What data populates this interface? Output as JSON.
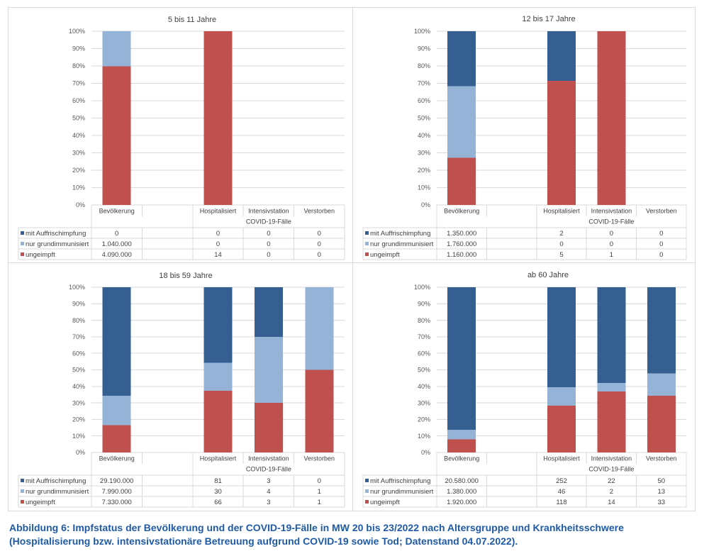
{
  "figure": {
    "caption_line1": "Abbildung 6: Impfstatus der Bevölkerung und der COVID-19-Fälle in MW 20 bis 23/2022 nach Altersgruppe und Krankheitsschwere",
    "caption_line2": "(Hospitalisierung bzw. intensivstationäre Betreuung aufgrund COVID-19 sowie Tod; Datenstand 04.07.2022)."
  },
  "colors": {
    "mit_auffrischimpfung": "#355F91",
    "nur_grundimmunisiert": "#95B3D7",
    "ungeimpft": "#C0504D",
    "caption": "#1F5AA6"
  },
  "chart_data": [
    {
      "type": "bar",
      "stacking": "percent",
      "title": "5 bis 11 Jahre",
      "xlabel": "",
      "ylabel": "",
      "ylim": [
        0,
        100
      ],
      "ytick_values": [
        0,
        10,
        20,
        30,
        40,
        50,
        60,
        70,
        80,
        90,
        100
      ],
      "yticks": [
        "0%",
        "10%",
        "20%",
        "30%",
        "40%",
        "50%",
        "60%",
        "70%",
        "80%",
        "90%",
        "100%"
      ],
      "grid": true,
      "legend": "bottom-data-table",
      "categories": [
        "Bevölkerung",
        "",
        "Hospitalisiert",
        "Intensivstation",
        "Verstorben"
      ],
      "category_group": {
        "label": "COVID-19-Fälle",
        "categories": [
          "Hospitalisiert",
          "Intensivstation",
          "Verstorben"
        ]
      },
      "series": [
        {
          "name": "mit Auffrischimpfung",
          "color": "#355F91",
          "values": [
            0,
            null,
            0,
            0,
            0
          ],
          "labels": [
            "0",
            "",
            "0",
            "0",
            "0"
          ]
        },
        {
          "name": "nur grundimmunisiert",
          "color": "#95B3D7",
          "values": [
            1040000,
            null,
            0,
            0,
            0
          ],
          "labels": [
            "1.040.000",
            "",
            "0",
            "0",
            "0"
          ]
        },
        {
          "name": "ungeimpft",
          "color": "#C0504D",
          "values": [
            4090000,
            null,
            14,
            0,
            0
          ],
          "labels": [
            "4.090.000",
            "",
            "14",
            "0",
            "0"
          ]
        }
      ]
    },
    {
      "type": "bar",
      "stacking": "percent",
      "title": "12 bis 17 Jahre",
      "xlabel": "",
      "ylabel": "",
      "ylim": [
        0,
        100
      ],
      "ytick_values": [
        0,
        10,
        20,
        30,
        40,
        50,
        60,
        70,
        80,
        90,
        100
      ],
      "yticks": [
        "0%",
        "10%",
        "20%",
        "30%",
        "40%",
        "50%",
        "60%",
        "70%",
        "80%",
        "90%",
        "100%"
      ],
      "grid": true,
      "legend": "bottom-data-table",
      "categories": [
        "Bevölkerung",
        "",
        "Hospitalisiert",
        "Intensivstation",
        "Verstorben"
      ],
      "category_group": {
        "label": "COVID-19-Fälle",
        "categories": [
          "Hospitalisiert",
          "Intensivstation",
          "Verstorben"
        ]
      },
      "series": [
        {
          "name": "mit Auffrischimpfung",
          "color": "#355F91",
          "values": [
            1350000,
            null,
            2,
            0,
            0
          ],
          "labels": [
            "1.350.000",
            "",
            "2",
            "0",
            "0"
          ]
        },
        {
          "name": "nur grundimmunisiert",
          "color": "#95B3D7",
          "values": [
            1760000,
            null,
            0,
            0,
            0
          ],
          "labels": [
            "1.760.000",
            "",
            "0",
            "0",
            "0"
          ]
        },
        {
          "name": "ungeimpft",
          "color": "#C0504D",
          "values": [
            1160000,
            null,
            5,
            1,
            0
          ],
          "labels": [
            "1.160.000",
            "",
            "5",
            "1",
            "0"
          ]
        }
      ]
    },
    {
      "type": "bar",
      "stacking": "percent",
      "title": "18 bis 59 Jahre",
      "xlabel": "",
      "ylabel": "",
      "ylim": [
        0,
        100
      ],
      "ytick_values": [
        0,
        10,
        20,
        30,
        40,
        50,
        60,
        70,
        80,
        90,
        100
      ],
      "yticks": [
        "0%",
        "10%",
        "20%",
        "30%",
        "40%",
        "50%",
        "60%",
        "70%",
        "80%",
        "90%",
        "100%"
      ],
      "grid": true,
      "legend": "bottom-data-table",
      "categories": [
        "Bevölkerung",
        "",
        "Hospitalisiert",
        "Intensivstation",
        "Verstorben"
      ],
      "category_group": {
        "label": "COVID-19-Fälle",
        "categories": [
          "Hospitalisiert",
          "Intensivstation",
          "Verstorben"
        ]
      },
      "series": [
        {
          "name": "mit Auffrischimpfung",
          "color": "#355F91",
          "values": [
            29190000,
            null,
            81,
            3,
            0
          ],
          "labels": [
            "29.190.000",
            "",
            "81",
            "3",
            "0"
          ]
        },
        {
          "name": "nur grundimmunisiert",
          "color": "#95B3D7",
          "values": [
            7990000,
            null,
            30,
            4,
            1
          ],
          "labels": [
            "7.990.000",
            "",
            "30",
            "4",
            "1"
          ]
        },
        {
          "name": "ungeimpft",
          "color": "#C0504D",
          "values": [
            7330000,
            null,
            66,
            3,
            1
          ],
          "labels": [
            "7.330.000",
            "",
            "66",
            "3",
            "1"
          ]
        }
      ]
    },
    {
      "type": "bar",
      "stacking": "percent",
      "title": "ab 60 Jahre",
      "xlabel": "",
      "ylabel": "",
      "ylim": [
        0,
        100
      ],
      "ytick_values": [
        0,
        10,
        20,
        30,
        40,
        50,
        60,
        70,
        80,
        90,
        100
      ],
      "yticks": [
        "0%",
        "10%",
        "20%",
        "30%",
        "40%",
        "50%",
        "60%",
        "70%",
        "80%",
        "90%",
        "100%"
      ],
      "grid": true,
      "legend": "bottom-data-table",
      "categories": [
        "Bevölkerung",
        "",
        "Hospitalisiert",
        "Intensivstation",
        "Verstorben"
      ],
      "category_group": {
        "label": "COVID-19-Fälle",
        "categories": [
          "Hospitalisiert",
          "Intensivstation",
          "Verstorben"
        ]
      },
      "series": [
        {
          "name": "mit Auffrischimpfung",
          "color": "#355F91",
          "values": [
            20580000,
            null,
            252,
            22,
            50
          ],
          "labels": [
            "20.580.000",
            "",
            "252",
            "22",
            "50"
          ]
        },
        {
          "name": "nur grundimmunisiert",
          "color": "#95B3D7",
          "values": [
            1380000,
            null,
            46,
            2,
            13
          ],
          "labels": [
            "1.380.000",
            "",
            "46",
            "2",
            "13"
          ]
        },
        {
          "name": "ungeimpft",
          "color": "#C0504D",
          "values": [
            1920000,
            null,
            118,
            14,
            33
          ],
          "labels": [
            "1.920.000",
            "",
            "118",
            "14",
            "33"
          ]
        }
      ]
    }
  ]
}
